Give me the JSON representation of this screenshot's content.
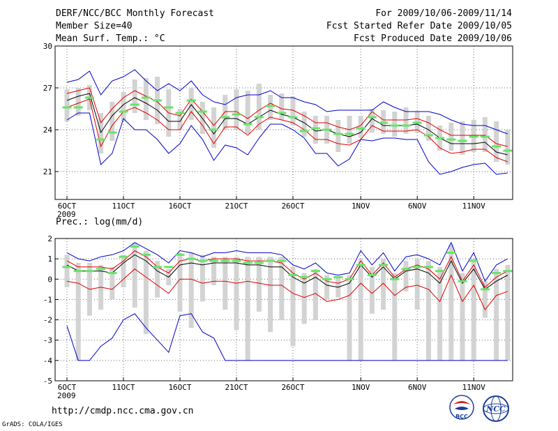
{
  "header": {
    "title": "DERF/NCC/BCC Monthly Forecast",
    "member_size": "Member Size=40",
    "variable": "Mean Surf. Temp.: °C",
    "forecast_period": "For 2009/10/06-2009/11/14",
    "started_refer": "Fcst Started Refer Date 2009/10/05",
    "produced": "Fcst Produced Date 2009/10/06"
  },
  "footer": {
    "url": "http://cmdp.ncc.cma.gov.cn",
    "software": "GrADS: COLA/IGES",
    "logo_bcc": "BCC",
    "logo_ncc": "NCC"
  },
  "colors": {
    "ensemble_box": "#d3d3d3",
    "member_mark": "#66e566",
    "mean_line": "#000000",
    "stddev_line": "#e00000",
    "extreme_line": "#0000cc",
    "grid": "#666666"
  },
  "chart_data": [
    {
      "type": "line",
      "title": "Mean Surf. Temp.: °C",
      "ylabel": "°C",
      "ylim": [
        19,
        30
      ],
      "yticks": [
        21,
        24,
        27,
        30
      ],
      "grid": true,
      "x_days": [
        1,
        2,
        3,
        4,
        5,
        6,
        7,
        8,
        9,
        10,
        11,
        12,
        13,
        14,
        15,
        16,
        17,
        18,
        19,
        20,
        21,
        22,
        23,
        24,
        25,
        26,
        27,
        28,
        29,
        30,
        31,
        32,
        33,
        34,
        35,
        36,
        37,
        38,
        39,
        40
      ],
      "xticks": [
        {
          "day": 1,
          "label": "6OCT",
          "sublabel": "2009"
        },
        {
          "day": 6,
          "label": "11OCT"
        },
        {
          "day": 11,
          "label": "16OCT"
        },
        {
          "day": 16,
          "label": "21OCT"
        },
        {
          "day": 21,
          "label": "26OCT"
        },
        {
          "day": 27,
          "label": "1NOV"
        },
        {
          "day": 32,
          "label": "6NOV"
        },
        {
          "day": 37,
          "label": "11NOV"
        }
      ],
      "series": [
        {
          "name": "ensemble max",
          "color": "#0000cc",
          "values": [
            27.4,
            27.6,
            28.2,
            26.5,
            27.5,
            27.8,
            28.3,
            27.5,
            26.8,
            27.3,
            26.8,
            27.5,
            26.5,
            26.0,
            25.8,
            26.3,
            26.5,
            26.5,
            26.8,
            26.3,
            26.3,
            26.0,
            25.8,
            25.3,
            25.4,
            25.4,
            25.4,
            25.4,
            26.0,
            25.6,
            25.3,
            25.3,
            25.3,
            25.1,
            24.7,
            24.4,
            24.3,
            24.3,
            24.0,
            23.7
          ]
        },
        {
          "name": "mean + std",
          "color": "#e00000",
          "values": [
            26.6,
            26.8,
            27.0,
            24.5,
            25.5,
            26.3,
            26.8,
            26.4,
            26.0,
            25.2,
            25.0,
            26.2,
            25.3,
            24.3,
            25.3,
            25.3,
            24.8,
            25.4,
            25.9,
            25.5,
            25.4,
            25.0,
            24.5,
            24.5,
            24.2,
            24.0,
            24.3,
            25.3,
            24.7,
            24.7,
            24.7,
            24.8,
            24.5,
            24.0,
            23.6,
            23.6,
            23.6,
            23.6,
            23.0,
            22.8
          ]
        },
        {
          "name": "mean",
          "color": "#000000",
          "values": [
            26.1,
            26.4,
            26.6,
            23.8,
            25.0,
            25.8,
            26.3,
            25.9,
            25.4,
            24.6,
            24.6,
            25.8,
            24.8,
            23.7,
            24.8,
            24.8,
            24.4,
            24.9,
            25.4,
            25.1,
            24.9,
            24.5,
            23.9,
            24.0,
            23.7,
            23.5,
            23.8,
            24.8,
            24.3,
            24.3,
            24.3,
            24.4,
            24.0,
            23.4,
            23.0,
            23.0,
            23.0,
            23.1,
            22.4,
            22.2
          ]
        },
        {
          "name": "mean - std",
          "color": "#e00000",
          "values": [
            25.6,
            25.9,
            26.2,
            22.8,
            24.3,
            25.3,
            25.6,
            25.2,
            24.7,
            24.0,
            24.0,
            25.3,
            24.3,
            23.0,
            24.2,
            24.2,
            23.6,
            24.4,
            24.9,
            24.7,
            24.5,
            24.0,
            23.3,
            23.3,
            23.0,
            22.9,
            23.3,
            24.3,
            23.9,
            23.9,
            23.9,
            24.0,
            23.5,
            22.7,
            22.3,
            22.4,
            22.6,
            22.6,
            22.0,
            21.7
          ]
        },
        {
          "name": "ensemble min",
          "color": "#0000cc",
          "values": [
            24.7,
            25.2,
            25.2,
            21.5,
            22.3,
            24.8,
            24.0,
            24.0,
            23.3,
            22.3,
            23.0,
            24.3,
            23.3,
            21.8,
            22.9,
            22.7,
            22.2,
            23.4,
            24.4,
            24.4,
            24.0,
            23.4,
            22.3,
            22.3,
            21.4,
            21.9,
            23.3,
            23.2,
            23.4,
            23.4,
            23.3,
            23.3,
            21.7,
            20.8,
            21.0,
            21.3,
            21.5,
            21.6,
            20.8,
            20.9
          ]
        }
      ],
      "boxes_min": [
        24.6,
        25.0,
        25.4,
        22.3,
        23.2,
        24.6,
        25.2,
        24.7,
        24.4,
        23.5,
        24.0,
        24.7,
        23.7,
        22.7,
        24.0,
        24.0,
        23.7,
        24.0,
        24.7,
        24.7,
        24.3,
        23.5,
        23.0,
        23.0,
        22.4,
        23.0,
        23.4,
        23.8,
        23.7,
        23.5,
        23.7,
        23.8,
        23.2,
        22.5,
        22.5,
        22.2,
        22.4,
        22.4,
        21.7,
        21.5
      ],
      "boxes_max": [
        26.9,
        27.0,
        27.2,
        25.2,
        26.0,
        26.7,
        27.6,
        27.7,
        27.8,
        26.9,
        25.5,
        27.0,
        26.0,
        25.6,
        26.5,
        26.9,
        26.8,
        27.3,
        26.5,
        26.6,
        26.4,
        25.3,
        25.0,
        25.0,
        24.7,
        25.0,
        25.0,
        25.5,
        25.4,
        25.3,
        25.6,
        25.3,
        25.0,
        24.3,
        24.5,
        24.6,
        24.7,
        24.9,
        24.6,
        24.0
      ],
      "current_member": [
        25.6,
        25.6,
        26.3,
        23.3,
        23.8,
        25.3,
        25.8,
        26.3,
        26.1,
        25.6,
        25.2,
        26.1,
        25.3,
        24.0,
        24.9,
        25.1,
        24.4,
        24.9,
        25.7,
        25.2,
        24.9,
        23.9,
        24.1,
        24.0,
        23.7,
        23.7,
        24.1,
        24.9,
        24.5,
        24.3,
        24.3,
        24.5,
        23.6,
        23.4,
        23.3,
        23.2,
        23.5,
        23.5,
        22.8,
        22.5
      ]
    },
    {
      "type": "line",
      "title": "Prec.: log(mm/d)",
      "ylabel": "log(mm/d)",
      "ylim": [
        -5,
        2
      ],
      "yticks": [
        -5,
        -4,
        -3,
        -2,
        -1,
        0,
        1,
        2
      ],
      "grid": true,
      "x_days": [
        1,
        2,
        3,
        4,
        5,
        6,
        7,
        8,
        9,
        10,
        11,
        12,
        13,
        14,
        15,
        16,
        17,
        18,
        19,
        20,
        21,
        22,
        23,
        24,
        25,
        26,
        27,
        28,
        29,
        30,
        31,
        32,
        33,
        34,
        35,
        36,
        37,
        38,
        39,
        40
      ],
      "xticks": [
        {
          "day": 1,
          "label": "6OCT",
          "sublabel": "2009"
        },
        {
          "day": 6,
          "label": "11OCT"
        },
        {
          "day": 11,
          "label": "16OCT"
        },
        {
          "day": 16,
          "label": "21OCT"
        },
        {
          "day": 21,
          "label": "26OCT"
        },
        {
          "day": 27,
          "label": "1NOV"
        },
        {
          "day": 32,
          "label": "6NOV"
        },
        {
          "day": 37,
          "label": "11NOV"
        }
      ],
      "series": [
        {
          "name": "ensemble max",
          "color": "#0000cc",
          "values": [
            1.3,
            1.0,
            0.9,
            1.1,
            1.2,
            1.4,
            1.8,
            1.5,
            1.2,
            0.8,
            1.4,
            1.3,
            1.1,
            1.3,
            1.3,
            1.4,
            1.3,
            1.3,
            1.3,
            1.2,
            0.7,
            0.5,
            0.8,
            0.3,
            0.2,
            0.3,
            1.4,
            0.7,
            1.3,
            0.4,
            1.1,
            1.2,
            1.0,
            0.7,
            1.8,
            0.4,
            1.3,
            -0.1,
            0.7,
            1.0
          ]
        },
        {
          "name": "mean + std",
          "color": "#e00000",
          "values": [
            0.9,
            0.6,
            0.6,
            0.6,
            0.5,
            0.9,
            1.4,
            1.1,
            0.6,
            0.3,
            0.9,
            1.0,
            0.9,
            1.0,
            1.0,
            1.0,
            0.9,
            0.9,
            0.9,
            0.8,
            0.3,
            0.0,
            0.3,
            -0.1,
            -0.2,
            0.0,
            0.9,
            0.2,
            0.8,
            0.1,
            0.5,
            0.7,
            0.5,
            0.0,
            1.1,
            -0.1,
            0.7,
            -0.4,
            0.1,
            0.4
          ]
        },
        {
          "name": "mean",
          "color": "#000000",
          "values": [
            0.7,
            0.4,
            0.4,
            0.4,
            0.3,
            0.8,
            1.2,
            0.9,
            0.4,
            0.1,
            0.7,
            0.8,
            0.7,
            0.8,
            0.8,
            0.8,
            0.7,
            0.7,
            0.6,
            0.6,
            0.1,
            -0.2,
            0.1,
            -0.3,
            -0.4,
            -0.2,
            0.7,
            0.1,
            0.6,
            0.0,
            0.4,
            0.5,
            0.3,
            -0.2,
            0.9,
            -0.2,
            0.5,
            -0.5,
            -0.1,
            0.2
          ]
        },
        {
          "name": "mean - std",
          "color": "#e00000",
          "values": [
            -0.1,
            -0.2,
            -0.5,
            -0.4,
            -0.5,
            0.0,
            0.5,
            0.1,
            -0.3,
            -0.7,
            0.0,
            0.0,
            -0.2,
            -0.1,
            -0.1,
            -0.2,
            -0.1,
            -0.2,
            -0.3,
            -0.3,
            -0.7,
            -0.9,
            -0.7,
            -1.1,
            -1.0,
            -0.8,
            -0.2,
            -0.7,
            -0.2,
            -0.8,
            -0.4,
            -0.3,
            -0.5,
            -1.1,
            0.2,
            -1.1,
            -0.3,
            -1.5,
            -0.8,
            -0.6
          ]
        },
        {
          "name": "ensemble min",
          "color": "#0000cc",
          "values": [
            -2.3,
            -4.0,
            -4.0,
            -3.3,
            -2.9,
            -2.0,
            -1.7,
            -2.4,
            -3.0,
            -3.6,
            -1.8,
            -1.7,
            -2.6,
            -2.9,
            -4.0,
            -4.0,
            -4.0,
            -4.0,
            -4.0,
            -4.0,
            -4.0,
            -4.0,
            -4.0,
            -4.0,
            -4.0,
            -4.0,
            -4.0,
            -4.0,
            -4.0,
            -4.0,
            -4.0,
            -4.0,
            -4.0,
            -4.0,
            -4.0,
            -4.0,
            -4.0,
            -4.0,
            -4.0,
            -4.0
          ]
        }
      ],
      "boxes_min": [
        -0.4,
        -4.0,
        -1.8,
        -1.5,
        -1.0,
        -0.4,
        -1.4,
        -2.7,
        -0.9,
        -0.3,
        -1.6,
        -2.4,
        -1.1,
        -0.3,
        -1.5,
        -2.5,
        -4.0,
        -1.6,
        -2.6,
        -2.0,
        -3.3,
        -2.2,
        -2.0,
        -1.0,
        -0.9,
        -4.0,
        -4.0,
        -1.7,
        -1.5,
        -4.0,
        -0.6,
        -1.5,
        -4.0,
        -4.0,
        -4.0,
        -4.0,
        -4.0,
        -1.9,
        -4.0,
        -4.0
      ],
      "boxes_max": [
        1.2,
        0.8,
        0.8,
        0.7,
        0.6,
        1.2,
        1.8,
        1.4,
        0.9,
        0.5,
        1.3,
        1.3,
        1.2,
        1.1,
        1.1,
        1.1,
        1.1,
        1.1,
        1.1,
        1.1,
        0.6,
        0.3,
        0.5,
        0.2,
        0.1,
        0.2,
        1.0,
        0.6,
        1.0,
        0.3,
        0.9,
        1.0,
        0.9,
        0.6,
        1.7,
        0.3,
        1.0,
        -0.1,
        0.5,
        0.7
      ],
      "current_member": [
        0.6,
        0.4,
        0.4,
        0.5,
        0.3,
        1.1,
        1.6,
        1.2,
        0.6,
        0.6,
        1.2,
        1.0,
        0.9,
        0.9,
        0.9,
        0.9,
        0.8,
        0.8,
        0.9,
        0.9,
        0.2,
        0.1,
        0.4,
        0.0,
        0.1,
        0.0,
        0.7,
        0.2,
        0.7,
        0.0,
        0.5,
        0.6,
        0.6,
        0.4,
        1.3,
        -0.1,
        0.9,
        -0.5,
        0.3,
        0.4
      ]
    }
  ]
}
